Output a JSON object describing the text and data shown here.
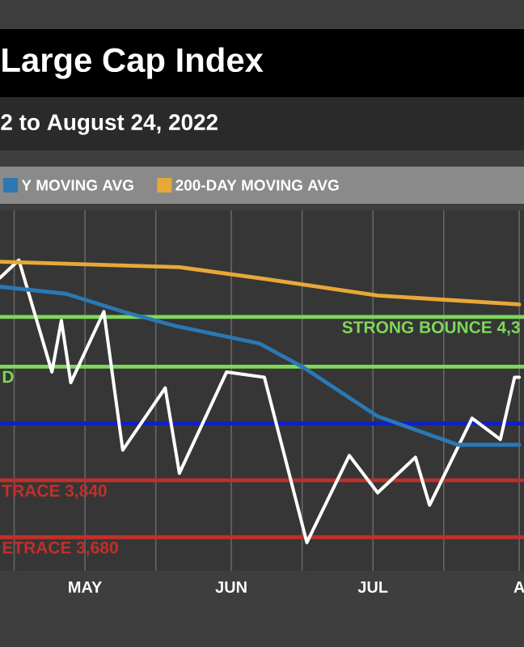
{
  "chart_data": {
    "type": "line",
    "title": "Large Cap Index",
    "subtitle": "2 to August 24, 2022",
    "xlim": [
      "2022-04-13",
      "2022-08-02"
    ],
    "ylim": [
      3585,
      4600
    ],
    "xticks": [
      {
        "value": "2022-04-16",
        "label": null
      },
      {
        "value": "2022-05-01",
        "label": "MAY"
      },
      {
        "value": "2022-05-16",
        "label": null
      },
      {
        "value": "2022-06-01",
        "label": "JUN"
      },
      {
        "value": "2022-06-16",
        "label": null
      },
      {
        "value": "2022-07-01",
        "label": "JUL"
      },
      {
        "value": "2022-07-16",
        "label": null
      },
      {
        "value": "2022-08-01",
        "label": "A"
      }
    ],
    "grid": "x",
    "legend": "top",
    "tick_labels": "x",
    "ref_lines": [
      {
        "axis": "y",
        "value": 4300,
        "label": "STRONG BOUNCE 4,3",
        "color": "#7ed95a"
      },
      {
        "axis": "y",
        "value": 4160,
        "label": "D",
        "color": "#7ed95a"
      },
      {
        "axis": "y",
        "value": 4000,
        "color": "#1020c8"
      },
      {
        "axis": "y",
        "value": 3840,
        "label": "TRACE 3,840",
        "color": "#c0302a"
      },
      {
        "axis": "y",
        "value": 3680,
        "label": "ETRACE 3,680",
        "color": "#c0302a"
      }
    ],
    "series": [
      {
        "color": "#ffffff",
        "x": [
          "2022-04-13",
          "2022-04-17",
          "2022-04-24",
          "2022-04-26",
          "2022-04-28",
          "2022-05-05",
          "2022-05-09",
          "2022-05-18",
          "2022-05-21",
          "2022-05-31",
          "2022-06-08",
          "2022-06-17",
          "2022-06-26",
          "2022-07-02",
          "2022-07-10",
          "2022-07-13",
          "2022-07-22",
          "2022-07-28",
          "2022-07-31",
          "2022-08-01"
        ],
        "values": [
          4410,
          4460,
          4145,
          4290,
          4115,
          4315,
          3925,
          4100,
          3860,
          4145,
          4130,
          3665,
          3910,
          3805,
          3905,
          3770,
          4015,
          3955,
          4130,
          4130
        ]
      },
      {
        "name": "Y MOVING AVG",
        "color": "#2a78b4",
        "x": [
          "2022-04-13",
          "2022-04-27",
          "2022-05-09",
          "2022-05-20",
          "2022-06-07",
          "2022-06-16",
          "2022-07-02",
          "2022-07-19",
          "2022-08-01"
        ],
        "values": [
          4385,
          4365,
          4315,
          4275,
          4225,
          4160,
          4020,
          3940,
          3940
        ]
      },
      {
        "name": "200-DAY MOVING AVG",
        "color": "#e8a838",
        "x": [
          "2022-04-13",
          "2022-05-21",
          "2022-06-09",
          "2022-07-02",
          "2022-08-01"
        ],
        "values": [
          4455,
          4440,
          4405,
          4360,
          4335
        ]
      }
    ]
  }
}
